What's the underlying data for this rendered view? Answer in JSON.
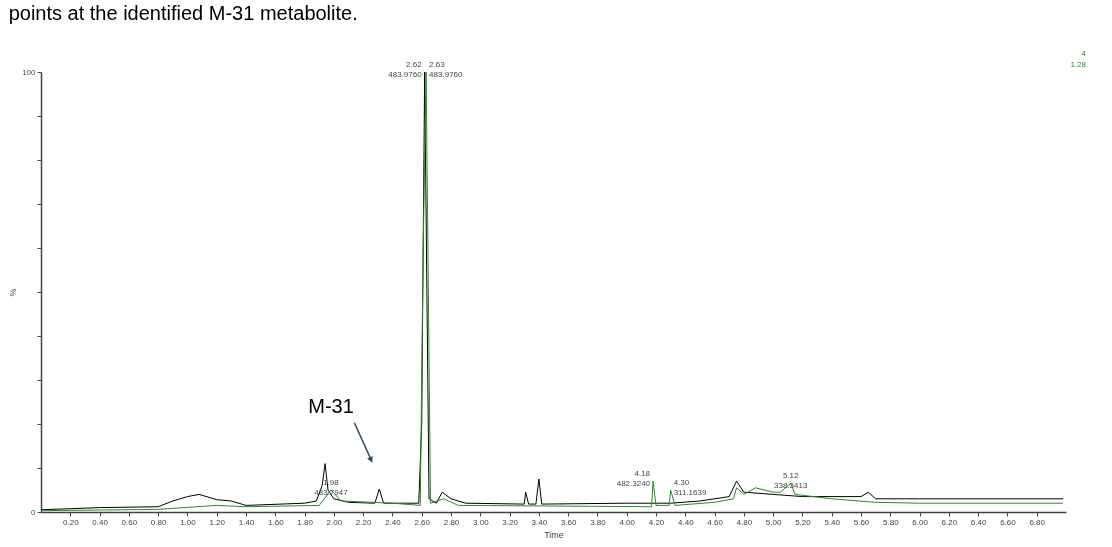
{
  "chart_data": {
    "type": "line",
    "title": "points at the identified M-31 metabolite.",
    "xlabel": "Time",
    "ylabel": "%",
    "xlim": [
      0,
      7
    ],
    "ylim": [
      0,
      100
    ],
    "xticks": [
      {
        "value": 0.2,
        "label": "0.20"
      },
      {
        "value": 0.4,
        "label": "0.40"
      },
      {
        "value": 0.6,
        "label": "0.60"
      },
      {
        "value": 0.8,
        "label": "0.80"
      },
      {
        "value": 1.0,
        "label": "1.00"
      },
      {
        "value": 1.2,
        "label": "1.20"
      },
      {
        "value": 1.4,
        "label": "1.40"
      },
      {
        "value": 1.6,
        "label": "1.60"
      },
      {
        "value": 1.8,
        "label": "1.80"
      },
      {
        "value": 2.0,
        "label": "2.00"
      },
      {
        "value": 2.2,
        "label": "2.20"
      },
      {
        "value": 2.4,
        "label": "2.40"
      },
      {
        "value": 2.6,
        "label": "2.60"
      },
      {
        "value": 2.8,
        "label": "2.80"
      },
      {
        "value": 3.0,
        "label": "3.00"
      },
      {
        "value": 3.2,
        "label": "3.20"
      },
      {
        "value": 3.4,
        "label": "3.40"
      },
      {
        "value": 3.6,
        "label": "3.60"
      },
      {
        "value": 3.8,
        "label": "3.80"
      },
      {
        "value": 4.0,
        "label": "4.00"
      },
      {
        "value": 4.2,
        "label": "4.20"
      },
      {
        "value": 4.4,
        "label": "4.40"
      },
      {
        "value": 4.6,
        "label": "4.60"
      },
      {
        "value": 4.8,
        "label": "4.80"
      },
      {
        "value": 5.0,
        "label": "5.00"
      },
      {
        "value": 5.2,
        "label": "5.20"
      },
      {
        "value": 5.4,
        "label": "5.40"
      },
      {
        "value": 5.6,
        "label": "5.60"
      },
      {
        "value": 5.8,
        "label": "5.80"
      },
      {
        "value": 6.0,
        "label": "6.00"
      },
      {
        "value": 6.2,
        "label": "6.20"
      },
      {
        "value": 6.4,
        "label": "6.40"
      },
      {
        "value": 6.6,
        "label": "6.60"
      },
      {
        "value": 6.8,
        "label": "6.80"
      }
    ],
    "yticks": [
      0,
      {
        "value": 10,
        "label": null
      },
      {
        "value": 20,
        "label": null
      },
      {
        "value": 30,
        "label": null
      },
      {
        "value": 40,
        "label": null
      },
      {
        "value": 50,
        "label": null
      },
      {
        "value": 60,
        "label": null
      },
      {
        "value": 70,
        "label": null
      },
      {
        "value": 80,
        "label": null
      },
      {
        "value": 90,
        "label": null
      },
      100
    ],
    "grid": false,
    "marker": "none",
    "line_style": "solid",
    "series": [
      {
        "color": "#000000",
        "x": [
          0,
          0.4,
          0.8,
          0.9,
          1.0,
          1.08,
          1.2,
          1.3,
          1.4,
          1.8,
          1.88,
          1.92,
          1.94,
          1.96,
          2.0,
          2.1,
          2.28,
          2.31,
          2.34,
          2.58,
          2.6,
          2.62,
          2.65,
          2.7,
          2.74,
          2.8,
          2.9,
          3.3,
          3.31,
          3.33,
          3.38,
          3.4,
          3.42,
          4.0,
          4.3,
          4.5,
          4.7,
          4.75,
          4.8,
          5.0,
          5.2,
          5.6,
          5.65,
          5.7,
          6.0,
          6.98
        ],
        "values": [
          0.5,
          1.0,
          1.2,
          2.5,
          3.5,
          4,
          2.8,
          2.5,
          1.5,
          2,
          2.5,
          6,
          11,
          5,
          3,
          2.2,
          2,
          5.2,
          2,
          2,
          20,
          100,
          3,
          2,
          4.5,
          3,
          2,
          1.8,
          4.5,
          1.8,
          1.8,
          7.5,
          1.8,
          2,
          2,
          2.5,
          3.5,
          7,
          4.5,
          4,
          3.5,
          3.5,
          4.5,
          3,
          3,
          3
        ]
      },
      {
        "color": "#2a8a2a",
        "x": [
          0,
          0.8,
          1.2,
          1.4,
          1.9,
          1.98,
          2.05,
          2.4,
          2.59,
          2.61,
          2.63,
          2.66,
          2.75,
          2.85,
          4.17,
          4.18,
          4.2,
          4.29,
          4.3,
          4.33,
          4.6,
          4.73,
          4.75,
          4.8,
          4.88,
          5.0,
          5.05,
          5.12,
          5.15,
          5.4,
          5.7,
          6.0,
          6.98
        ],
        "values": [
          0.3,
          0.6,
          1.5,
          1.2,
          1.5,
          5,
          2.5,
          2,
          1.5,
          60,
          100,
          2,
          3,
          1.5,
          1.2,
          7,
          1.5,
          1.5,
          5,
          1.5,
          2.2,
          3,
          5.5,
          4,
          5.5,
          4.5,
          4.5,
          6.5,
          4,
          3,
          2.2,
          2,
          2
        ]
      }
    ],
    "annotations": [
      {
        "text": "1.98\n483.7947",
        "x": 1.98,
        "y": 5
      },
      {
        "text": "2.62\n483.9760",
        "x": 2.62,
        "y": 100
      },
      {
        "text": "2.63\n483.9760",
        "x": 2.63,
        "y": 100
      },
      {
        "text": "4.18\n482.3240",
        "x": 4.18,
        "y": 7
      },
      {
        "text": "4.30\n311.1639",
        "x": 4.3,
        "y": 5
      },
      {
        "text": "5.12\n338.3413",
        "x": 5.12,
        "y": 6.5
      },
      "M-31",
      "4",
      "1.28"
    ]
  }
}
